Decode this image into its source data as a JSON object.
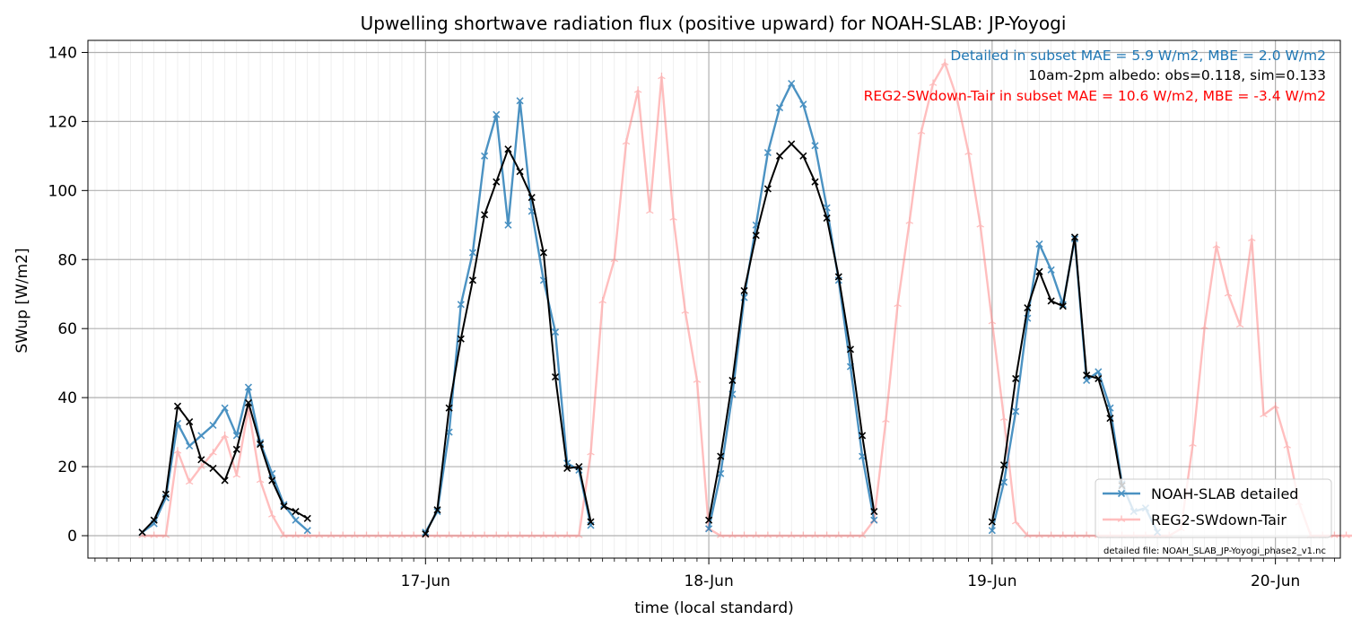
{
  "chart_data": {
    "type": "line",
    "title": "Upwelling shortwave radiation flux (positive upward) for NOAH-SLAB: JP-Yoyogi",
    "xlabel": "time (local standard)",
    "ylabel": "SWup [W/m2]",
    "ylim": [
      -6.5,
      143.5
    ],
    "yticks": [
      0,
      20,
      40,
      60,
      80,
      100,
      120,
      140
    ],
    "xlim_hours": [
      -4.6,
      101.5
    ],
    "x_tick_labels": [
      {
        "label": "17-Jun",
        "hour": 24
      },
      {
        "label": "18-Jun",
        "hour": 48
      },
      {
        "label": "19-Jun",
        "hour": 72
      },
      {
        "label": "20-Jun",
        "hour": 96
      }
    ],
    "grid": true,
    "legend_placement": "lower-right",
    "annotations": [
      {
        "text": "Detailed in subset MAE = 5.9 W/m2, MBE = 2.0 W/m2",
        "color": "#1f77b4"
      },
      {
        "text": "10am-2pm albedo: obs=0.118, sim=0.133",
        "color": "#000000"
      },
      {
        "text": "REG2-SWdown-Tair in subset MAE = 10.6 W/m2, MBE = -3.4 W/m2",
        "color": "#ff0000"
      }
    ],
    "footnote": "detailed file: NOAH_SLAB_JP-Yoyogi_phase2_v1.nc",
    "series": [
      {
        "name": "NOAH-SLAB detailed",
        "color": "#1f77b4",
        "marker": "x",
        "in_legend": true,
        "segments": [
          {
            "start_hour": 0,
            "values": [
              1,
              3.5,
              11,
              32.5,
              26,
              29,
              32,
              37,
              29,
              43,
              27,
              18,
              9,
              4.5,
              1.5
            ]
          },
          {
            "start_hour": 24,
            "values": [
              1,
              7,
              30,
              67,
              82,
              110,
              122,
              90,
              126,
              94,
              74,
              59,
              21,
              19,
              3
            ]
          },
          {
            "start_hour": 48,
            "values": [
              2,
              18,
              41,
              69,
              90,
              111,
              124,
              131,
              125,
              113,
              95,
              74,
              49,
              23,
              4.5
            ]
          },
          {
            "start_hour": 72,
            "values": [
              1.5,
              15.5,
              36,
              63,
              84.5,
              77,
              67,
              86,
              45,
              47.5,
              37,
              15,
              7,
              8,
              1
            ]
          }
        ]
      },
      {
        "name": "REG2-SWdown-Tair",
        "color": "#ff7f7f",
        "marker": "tri",
        "in_legend": true,
        "segments": [
          {
            "start_hour": 0,
            "values": [
              0,
              0,
              0,
              24.5,
              15.5,
              20,
              24,
              29,
              17.5,
              37,
              16,
              6,
              0,
              0,
              0,
              0,
              0,
              0,
              0,
              0,
              0,
              0,
              0,
              0,
              0,
              0,
              0,
              0,
              0,
              0,
              0,
              0,
              0,
              0,
              0,
              0,
              0,
              0,
              24,
              68,
              80,
              114,
              129,
              94,
              133,
              92,
              65,
              45,
              2,
              0,
              0,
              0,
              0,
              0,
              0,
              0,
              0,
              0,
              0,
              0,
              0,
              0,
              4.5,
              33.5,
              67,
              91,
              117,
              131,
              137,
              127,
              111,
              90,
              62,
              34,
              4,
              0,
              0,
              0,
              0,
              0,
              0,
              0,
              0,
              0,
              0,
              0,
              0,
              0,
              2,
              26.5,
              60.5,
              84,
              70,
              61,
              86,
              35,
              37.5,
              26,
              9.5,
              0,
              0,
              0,
              0,
              0,
              0,
              0,
              0,
              0,
              0,
              0,
              0
            ]
          }
        ]
      },
      {
        "name": "observed",
        "color": "#000000",
        "marker": "x",
        "in_legend": false,
        "segments": [
          {
            "start_hour": 0,
            "values": [
              1,
              4.5,
              12,
              37.5,
              33,
              22,
              19.5,
              16,
              25,
              38.5,
              26.5,
              16,
              8.5,
              7,
              5
            ]
          },
          {
            "start_hour": 24,
            "values": [
              0.5,
              7.5,
              37,
              57,
              74,
              93,
              102.5,
              112,
              105.5,
              98,
              82,
              46,
              19.5,
              20,
              4
            ]
          },
          {
            "start_hour": 48,
            "values": [
              4.5,
              23,
              45,
              71,
              87,
              100.5,
              110,
              113.5,
              110,
              102.5,
              92,
              75,
              54,
              29,
              7
            ]
          },
          {
            "start_hour": 72,
            "values": [
              4,
              20.5,
              45.5,
              66,
              76.5,
              68,
              66.5,
              86.5,
              46.5,
              45.5,
              34,
              14.5
            ]
          }
        ]
      }
    ]
  }
}
